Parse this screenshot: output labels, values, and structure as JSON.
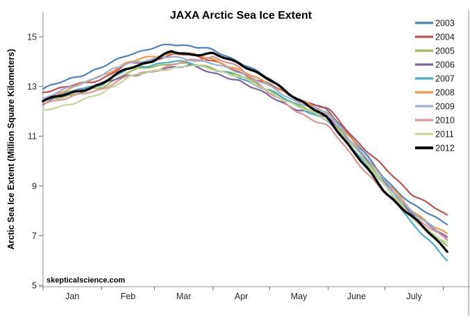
{
  "chart_data": {
    "type": "line",
    "title": "JAXA Arctic Sea Ice Extent",
    "xlabel": "",
    "ylabel": "Arctic Sea Ice Extent (Million Square Kilometers)",
    "watermark": "skepticalscience.com",
    "ylim": [
      5,
      15
    ],
    "y_ticks": [
      5,
      7,
      9,
      11,
      13,
      15
    ],
    "x_range_days": [
      0,
      214
    ],
    "x_unit": "day of year (Jan 1 = 0), data runs Jan 1 through early Aug",
    "x_tick_days": [
      0,
      31,
      59,
      90,
      120,
      151,
      181,
      212
    ],
    "x_month_labels": [
      "Jan",
      "Feb",
      "Mar",
      "Apr",
      "May",
      "June",
      "July"
    ],
    "grid": false,
    "legend_position": "right",
    "axis_color": "#A6A6A6",
    "sample_dates": [
      "Jan 1",
      "Jan 15",
      "Feb 1",
      "Feb 15",
      "Mar 1",
      "Mar 10",
      "Mar 20",
      "Apr 1",
      "Apr 15",
      "May 1",
      "May 15",
      "Jun 1",
      "Jun 15",
      "Jul 1",
      "Jul 15",
      "Aug 3"
    ],
    "sample_days": [
      0,
      14,
      31,
      45,
      59,
      68,
      78,
      90,
      104,
      120,
      134,
      151,
      165,
      181,
      195,
      214
    ],
    "units": "Million Square Kilometers",
    "series": [
      {
        "name": "2003",
        "color": "#4F81BD",
        "values": [
          12.9,
          13.3,
          13.75,
          14.3,
          14.55,
          14.7,
          14.65,
          14.45,
          14.0,
          13.3,
          12.5,
          12.05,
          10.8,
          9.3,
          8.25,
          7.5
        ]
      },
      {
        "name": "2004",
        "color": "#C0504D",
        "values": [
          12.8,
          13.0,
          13.3,
          13.9,
          14.1,
          14.25,
          14.3,
          14.05,
          13.55,
          13.1,
          12.5,
          12.1,
          10.9,
          9.7,
          8.7,
          7.8
        ]
      },
      {
        "name": "2005",
        "color": "#9BBB59",
        "values": [
          12.45,
          12.65,
          12.95,
          13.6,
          13.8,
          13.95,
          13.9,
          13.75,
          13.45,
          12.85,
          12.25,
          11.8,
          10.55,
          9.15,
          7.75,
          6.6
        ]
      },
      {
        "name": "2006",
        "color": "#8064A2",
        "values": [
          12.3,
          12.8,
          13.1,
          13.45,
          13.6,
          13.75,
          13.9,
          13.5,
          13.25,
          12.6,
          12.1,
          11.75,
          10.6,
          9.2,
          7.9,
          6.95
        ]
      },
      {
        "name": "2007",
        "color": "#4BACC6",
        "values": [
          12.5,
          12.75,
          13.1,
          13.7,
          13.9,
          14.0,
          13.95,
          13.7,
          13.35,
          12.85,
          12.25,
          11.6,
          10.45,
          9.0,
          7.55,
          6.0
        ]
      },
      {
        "name": "2008",
        "color": "#F79646",
        "values": [
          12.4,
          12.95,
          13.4,
          14.0,
          14.2,
          14.35,
          14.3,
          14.1,
          13.65,
          13.1,
          12.5,
          11.95,
          10.7,
          9.25,
          8.0,
          7.05
        ]
      },
      {
        "name": "2009",
        "color": "#95B3D7",
        "values": [
          12.5,
          12.95,
          13.45,
          13.95,
          14.1,
          14.2,
          14.1,
          13.9,
          13.6,
          13.0,
          12.4,
          11.9,
          10.65,
          9.2,
          7.95,
          6.9
        ]
      },
      {
        "name": "2010",
        "color": "#D99694",
        "values": [
          12.35,
          12.55,
          12.9,
          13.4,
          13.65,
          13.85,
          14.05,
          14.2,
          13.75,
          12.75,
          12.0,
          11.4,
          10.1,
          8.7,
          7.85,
          6.8
        ]
      },
      {
        "name": "2011",
        "color": "#C3D69B",
        "values": [
          12.0,
          12.3,
          12.7,
          13.4,
          13.6,
          13.75,
          13.85,
          13.7,
          13.4,
          12.8,
          12.2,
          11.7,
          10.5,
          9.05,
          7.7,
          6.7
        ]
      },
      {
        "name": "2012",
        "color": "#000000",
        "values": [
          12.45,
          12.7,
          13.1,
          13.75,
          14.05,
          14.4,
          14.3,
          14.3,
          13.95,
          13.25,
          12.55,
          11.7,
          10.35,
          8.75,
          7.8,
          6.4
        ]
      }
    ]
  }
}
